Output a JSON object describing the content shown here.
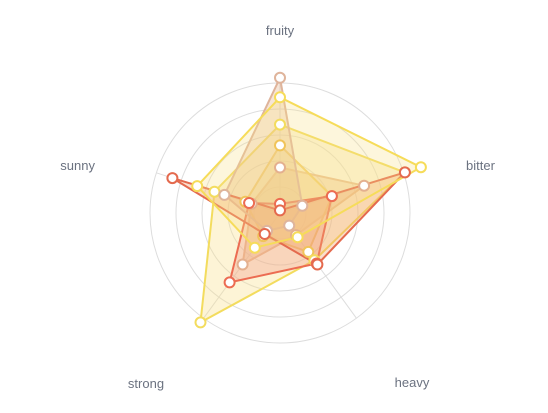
{
  "chart_data": {
    "type": "radar",
    "axes": [
      "fruity",
      "bitter",
      "heavy",
      "strong",
      "sunny"
    ],
    "rmax": 100,
    "grid": true,
    "ring_levels": [
      20,
      40,
      60,
      80,
      100
    ],
    "series": [
      {
        "values": [
          35,
          68,
          21,
          49,
          23
        ],
        "stroke": "#e4b08f",
        "fill": "#e8b48c",
        "fill_opacity": 0.45
      },
      {
        "values": [
          52,
          42,
          37,
          22,
          28
        ],
        "stroke": "#f0c45a",
        "fill": "#f7da8a",
        "fill_opacity": 0.35
      },
      {
        "values": [
          68,
          101,
          45,
          104,
          53
        ],
        "stroke": "#f3dc5e",
        "fill": "#f8e08a",
        "fill_opacity": 0.35
      },
      {
        "values": [
          7,
          42,
          48,
          66,
          25
        ],
        "stroke": "#ec6c52",
        "fill": "#f29a8a",
        "fill_opacity": 0.35
      },
      {
        "values": [
          104,
          18,
          12,
          17,
          45
        ],
        "stroke": "#dfb49b",
        "fill": "#e6b48c",
        "fill_opacity": 0.35
      },
      {
        "values": [
          2,
          101,
          49,
          20,
          87
        ],
        "stroke": "#e46a4e",
        "fill": "#f2a070",
        "fill_opacity": 0.35
      },
      {
        "values": [
          89,
          114,
          23,
          33,
          67
        ],
        "stroke": "#f6dc5a",
        "fill": "#f8e28a",
        "fill_opacity": 0.3
      }
    ]
  }
}
